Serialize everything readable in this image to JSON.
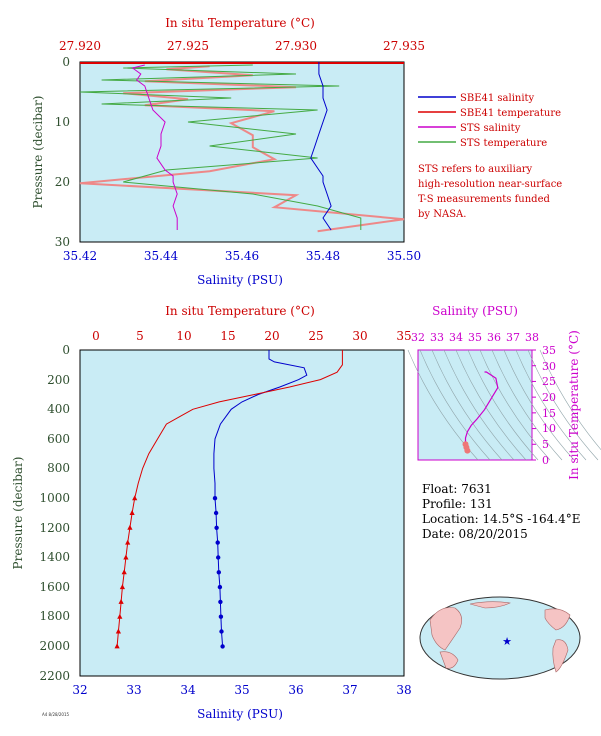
{
  "top": {
    "title": "In situ Temperature (°C)",
    "xlabel": "Salinity (PSU)",
    "ylabel": "Pressure (decibar)",
    "temp_ticks": [
      "27.920",
      "27.925",
      "27.930",
      "27.935"
    ],
    "sal_ticks": [
      "35.42",
      "35.44",
      "35.46",
      "35.48",
      "35.50"
    ],
    "p_ticks": [
      "0",
      "10",
      "20",
      "30"
    ],
    "legend": {
      "sbe_sal": "SBE41 salinity",
      "sbe_temp": "SBE41 temperature",
      "sts_sal": "STS salinity",
      "sts_temp": "STS temperature"
    },
    "note": [
      "STS refers to auxiliary",
      "high-resolution near-surface",
      "T-S measurements funded",
      "by NASA."
    ]
  },
  "main": {
    "title": "In situ Temperature (°C)",
    "xlabel": "Salinity (PSU)",
    "ylabel": "Pressure (decibar)",
    "temp_ticks": [
      "0",
      "5",
      "10",
      "15",
      "20",
      "25",
      "30",
      "35"
    ],
    "sal_ticks": [
      "32",
      "33",
      "34",
      "35",
      "36",
      "37",
      "38"
    ],
    "p_ticks": [
      "0",
      "200",
      "400",
      "600",
      "800",
      "1000",
      "1200",
      "1400",
      "1600",
      "1800",
      "2000",
      "2200"
    ]
  },
  "ts": {
    "title": "Salinity (PSU)",
    "ylabel": "In situ Temperature (°C)",
    "sal_ticks": [
      "32",
      "33",
      "34",
      "35",
      "36",
      "37",
      "38"
    ],
    "temp_ticks": [
      "0",
      "5",
      "10",
      "15",
      "20",
      "25",
      "30",
      "35"
    ]
  },
  "info": {
    "float": "Float: 7631",
    "profile": "Profile: 131",
    "location": "Location: 14.5°S -164.4°E",
    "date": "Date: 08/20/2015"
  },
  "footer_stamp": "A4 8/28/2015",
  "colors": {
    "panel": "#c9ecf5",
    "sbe_salinity": "#0000cc",
    "sbe_temperature": "#dd0000",
    "sts_salinity": "#cc00cc",
    "sts_temperature": "#44aa44",
    "sts_temperature_alt": "#ee8888",
    "axis_red": "#cc0000",
    "axis_blue": "#0000cc",
    "axis_dark": "#2f4f2f"
  },
  "chart_data": [
    {
      "type": "line",
      "panel": "near-surface",
      "x_salinity_lim": [
        35.42,
        35.5
      ],
      "x_temperature_lim": [
        27.92,
        27.935
      ],
      "ylim_pressure": [
        30,
        0
      ],
      "series": [
        {
          "name": "SBE41 salinity",
          "pressure": [
            0,
            2,
            4,
            6,
            8,
            10,
            12,
            14,
            16,
            18,
            19,
            20,
            22,
            24,
            26,
            28
          ],
          "values": [
            35.479,
            35.479,
            35.48,
            35.48,
            35.481,
            35.48,
            35.479,
            35.478,
            35.477,
            35.479,
            35.48,
            35.48,
            35.481,
            35.482,
            35.48,
            35.482
          ]
        },
        {
          "name": "SBE41 temperature",
          "pressure": [
            0
          ],
          "values": [
            27.935
          ]
        },
        {
          "name": "STS salinity",
          "pressure": [
            0.5,
            1,
            2,
            3,
            4,
            6,
            8,
            10,
            12,
            14,
            16,
            18,
            19,
            20,
            22,
            24,
            26,
            28
          ],
          "values": [
            35.436,
            35.433,
            35.435,
            35.434,
            35.436,
            35.437,
            35.438,
            35.441,
            35.44,
            35.44,
            35.439,
            35.441,
            35.443,
            35.443,
            35.444,
            35.443,
            35.444,
            35.444
          ]
        },
        {
          "name": "STS temperature",
          "pressure": [
            0.5,
            1,
            2,
            3,
            4,
            5,
            6,
            7,
            8,
            10,
            12,
            14,
            16,
            18,
            20,
            22,
            24,
            26,
            28
          ],
          "values": [
            27.928,
            27.922,
            27.93,
            27.921,
            27.932,
            27.92,
            27.927,
            27.921,
            27.931,
            27.925,
            27.93,
            27.926,
            27.931,
            27.924,
            27.922,
            27.928,
            27.931,
            27.933,
            27.933
          ]
        }
      ]
    },
    {
      "type": "line",
      "panel": "full-depth",
      "x_salinity_lim": [
        32,
        38
      ],
      "x_temperature_lim": [
        0,
        35
      ],
      "ylim_pressure": [
        2200,
        0
      ],
      "series": [
        {
          "name": "salinity",
          "pressure": [
            0,
            60,
            80,
            120,
            170,
            200,
            250,
            300,
            350,
            400,
            500,
            600,
            700,
            800,
            900,
            1000,
            1100,
            1200,
            1300,
            1400,
            1500,
            1600,
            1700,
            1800,
            1900,
            2000
          ],
          "values": [
            35.5,
            35.5,
            35.6,
            36.15,
            36.2,
            36.05,
            35.7,
            35.3,
            35.0,
            34.8,
            34.6,
            34.5,
            34.48,
            34.48,
            34.5,
            34.5,
            34.52,
            34.53,
            34.55,
            34.56,
            34.57,
            34.59,
            34.6,
            34.61,
            34.62,
            34.64
          ]
        },
        {
          "name": "temperature",
          "pressure": [
            0,
            100,
            150,
            200,
            250,
            300,
            350,
            400,
            450,
            500,
            600,
            700,
            800,
            900,
            1000,
            1100,
            1200,
            1300,
            1400,
            1500,
            1600,
            1700,
            1800,
            1900,
            2000
          ],
          "values": [
            28,
            28,
            27.4,
            25.5,
            22,
            18,
            14,
            11,
            9.5,
            8,
            7,
            6,
            5.3,
            4.8,
            4.4,
            4.1,
            3.85,
            3.6,
            3.4,
            3.2,
            3.0,
            2.85,
            2.7,
            2.55,
            2.4
          ]
        }
      ]
    },
    {
      "type": "line",
      "panel": "T-S diagram",
      "xlim_salinity": [
        32,
        38
      ],
      "ylim_temperature": [
        0,
        35
      ],
      "series": [
        {
          "name": "T-S",
          "salinity": [
            35.5,
            35.6,
            36.1,
            36.2,
            35.9,
            35.5,
            35.1,
            34.8,
            34.6,
            34.5,
            34.5,
            34.55,
            34.6
          ],
          "temperature": [
            28,
            28,
            26,
            23,
            20,
            16,
            13,
            11,
            9,
            7,
            5,
            4,
            3
          ]
        }
      ]
    }
  ]
}
